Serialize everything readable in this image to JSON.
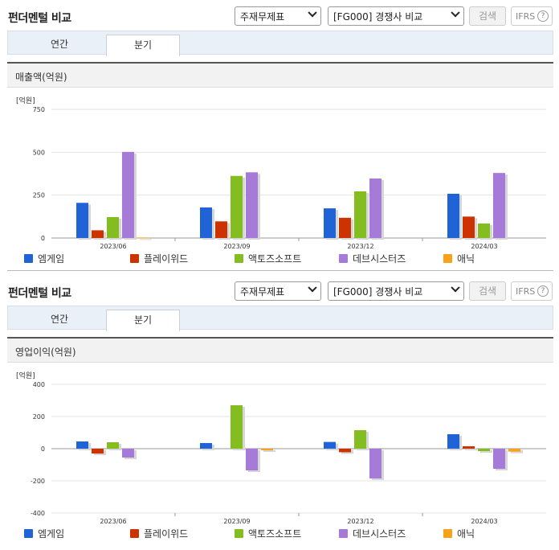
{
  "colors": {
    "엠게임": "#1f63d6",
    "플레이위드": "#cc3300",
    "액토즈소프트": "#84bd20",
    "데브시스터즈": "#a57ad9",
    "애닉": "#f7a21a"
  },
  "panels": [
    {
      "header": {
        "title": "펀더멘털 비교",
        "select_statement": "주재무제표",
        "select_compare": "[FG000] 경쟁사 비교",
        "search_label": "검색",
        "ifrs_label": "IFRS",
        "help_label": "?"
      },
      "tabs": [
        "연간",
        "분기"
      ],
      "active_tab": "분기",
      "chart_title": "매출액(억원)",
      "unit_label": "[억원]"
    },
    {
      "header": {
        "title": "펀더멘털 비교",
        "select_statement": "주재무제표",
        "select_compare": "[FG000] 경쟁사 비교",
        "search_label": "검색",
        "ifrs_label": "IFRS",
        "help_label": "?"
      },
      "tabs": [
        "연간",
        "분기"
      ],
      "active_tab": "분기",
      "chart_title": "영업이익(억원)",
      "unit_label": "[억원]"
    }
  ],
  "chart_data": [
    {
      "type": "bar",
      "title": "매출액(억원)",
      "ylabel": "[억원]",
      "categories": [
        "2023/06",
        "2023/09",
        "2023/12",
        "2024/03"
      ],
      "ylim": [
        0,
        750
      ],
      "yticks": [
        0,
        250,
        500,
        750
      ],
      "grid": true,
      "legend_position": "bottom",
      "series": [
        {
          "name": "엠게임",
          "values": [
            205,
            178,
            173,
            258
          ]
        },
        {
          "name": "플레이위드",
          "values": [
            45,
            97,
            118,
            125
          ]
        },
        {
          "name": "액토즈소프트",
          "values": [
            122,
            362,
            272,
            85
          ]
        },
        {
          "name": "데브시스터즈",
          "values": [
            502,
            383,
            347,
            379
          ]
        },
        {
          "name": "애닉",
          "values": [
            3,
            null,
            null,
            null
          ]
        }
      ]
    },
    {
      "type": "bar",
      "title": "영업이익(억원)",
      "ylabel": "[억원]",
      "categories": [
        "2023/06",
        "2023/09",
        "2023/12",
        "2024/03"
      ],
      "ylim": [
        -400,
        400
      ],
      "yticks": [
        -400,
        -200,
        0,
        200,
        400
      ],
      "grid": true,
      "legend_position": "bottom",
      "series": [
        {
          "name": "엠게임",
          "values": [
            45,
            35,
            42,
            90
          ]
        },
        {
          "name": "플레이위드",
          "values": [
            -30,
            null,
            -22,
            15
          ]
        },
        {
          "name": "액토즈소프트",
          "values": [
            40,
            270,
            115,
            -15
          ]
        },
        {
          "name": "데브시스터즈",
          "values": [
            -55,
            -135,
            -185,
            -125
          ]
        },
        {
          "name": "애닉",
          "values": [
            null,
            -10,
            null,
            -18
          ]
        }
      ]
    }
  ]
}
